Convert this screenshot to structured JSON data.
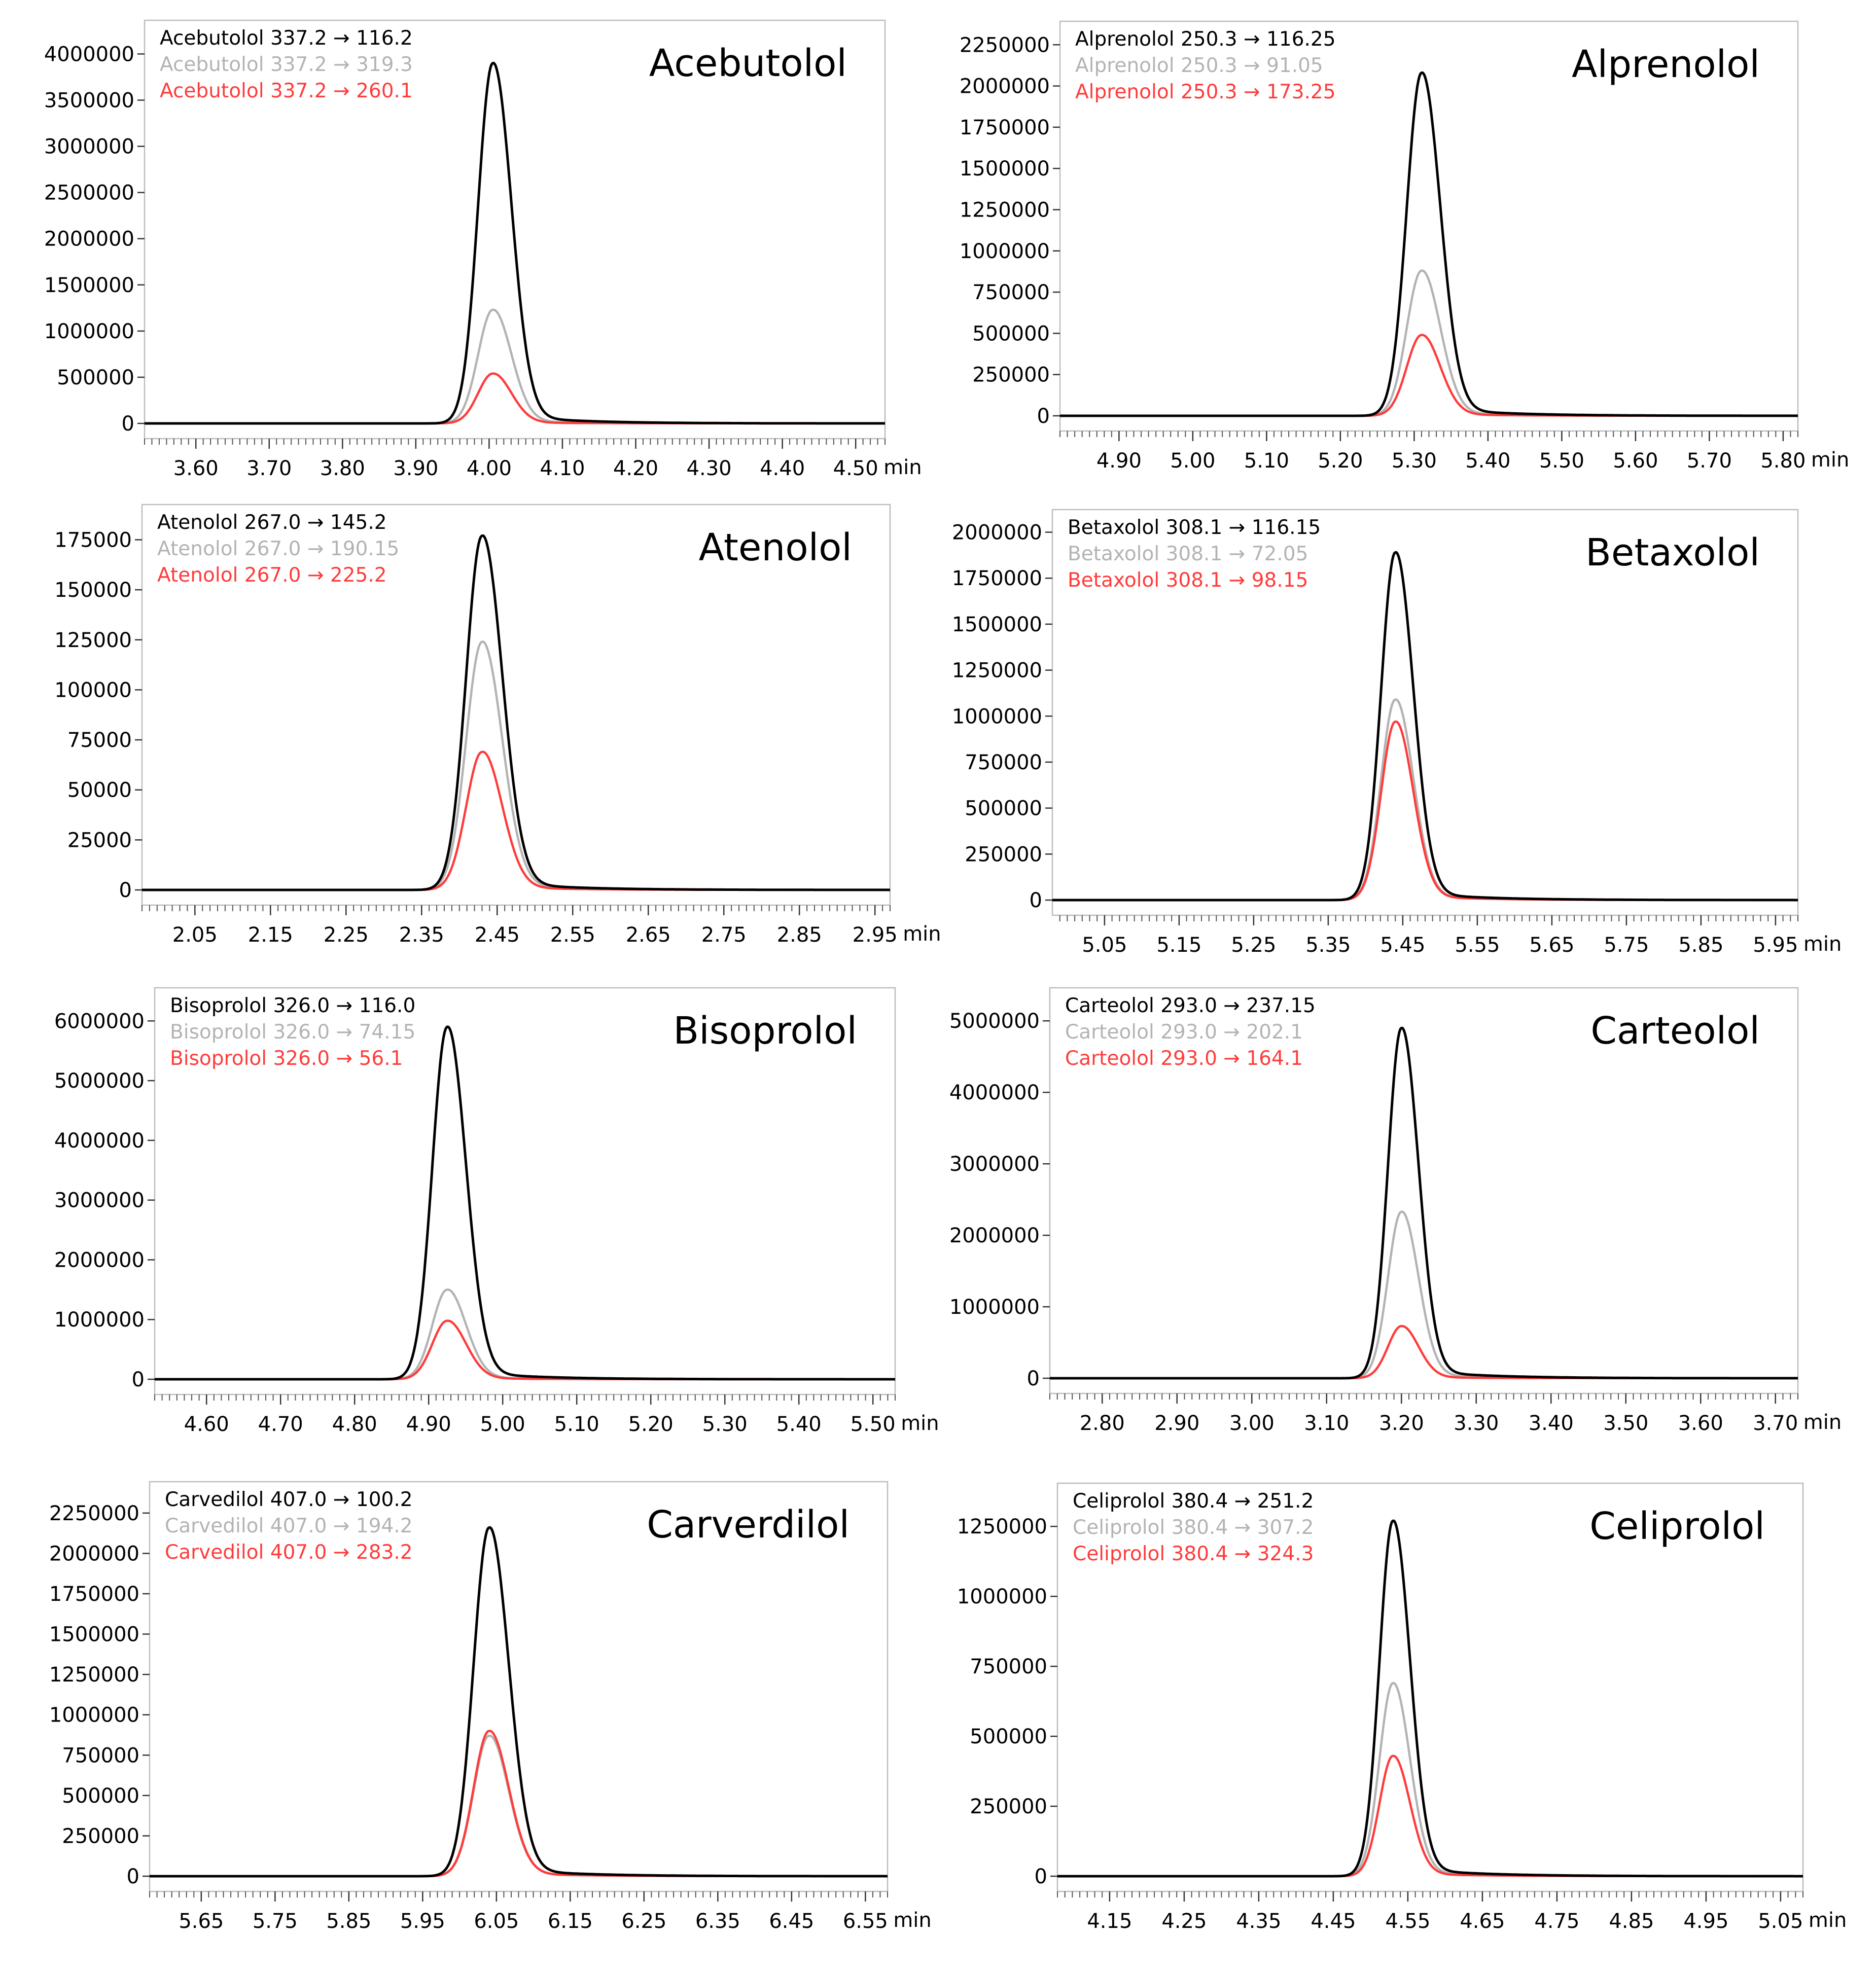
{
  "figure": "8-panel LC-MS/MS chromatogram grid",
  "colors": {
    "primary": "#000000",
    "secondary": "#b3b3b3",
    "tertiary": "#ff3b3b",
    "frame": "#bdbdbd"
  },
  "chart_data": [
    {
      "type": "line",
      "title": "Acebutolol",
      "xlabel": "min",
      "x_ticks": [
        "3.60",
        "3.70",
        "3.80",
        "3.90",
        "4.00",
        "4.10",
        "4.20",
        "4.30",
        "4.40",
        "4.50"
      ],
      "y_ticks": [
        "0",
        "500000",
        "1000000",
        "1500000",
        "2000000",
        "2500000",
        "3000000",
        "3500000",
        "4000000"
      ],
      "xlim": [
        3.53,
        4.54
      ],
      "ylim": [
        0,
        4200000
      ],
      "peak_rt": 4.005,
      "peak_sigma": 0.02,
      "series": [
        {
          "name": "Acebutolol 337.2 → 116.2",
          "color": "#000000",
          "peak": 3900000
        },
        {
          "name": "Acebutolol 337.2 → 319.3",
          "color": "#b3b3b3",
          "peak": 1230000
        },
        {
          "name": "Acebutolol 337.2 → 260.1",
          "color": "#ff3b3b",
          "peak": 540000
        }
      ]
    },
    {
      "type": "line",
      "title": "Alprenolol",
      "xlabel": "min",
      "x_ticks": [
        "4.90",
        "5.00",
        "5.10",
        "5.20",
        "5.30",
        "5.40",
        "5.50",
        "5.60",
        "5.70",
        "5.80"
      ],
      "y_ticks": [
        "0",
        "250000",
        "500000",
        "750000",
        "1000000",
        "1250000",
        "1500000",
        "1750000",
        "2000000",
        "2250000"
      ],
      "xlim": [
        4.82,
        5.82
      ],
      "ylim": [
        0,
        2300000
      ],
      "peak_rt": 5.31,
      "peak_sigma": 0.02,
      "series": [
        {
          "name": "Alprenolol 250.3 → 116.25",
          "color": "#000000",
          "peak": 2080000
        },
        {
          "name": "Alprenolol 250.3 → 91.05",
          "color": "#b3b3b3",
          "peak": 880000
        },
        {
          "name": "Alprenolol 250.3 → 173.25",
          "color": "#ff3b3b",
          "peak": 490000
        }
      ]
    },
    {
      "type": "line",
      "title": "Atenolol",
      "xlabel": "min",
      "x_ticks": [
        "2.05",
        "2.15",
        "2.25",
        "2.35",
        "2.45",
        "2.55",
        "2.65",
        "2.75",
        "2.85",
        "2.95"
      ],
      "y_ticks": [
        "0",
        "25000",
        "50000",
        "75000",
        "100000",
        "125000",
        "150000",
        "175000"
      ],
      "xlim": [
        1.98,
        2.97
      ],
      "ylim": [
        0,
        185000
      ],
      "peak_rt": 2.43,
      "peak_sigma": 0.021,
      "series": [
        {
          "name": "Atenolol 267.0 → 145.2",
          "color": "#000000",
          "peak": 177000
        },
        {
          "name": "Atenolol 267.0 → 190.15",
          "color": "#b3b3b3",
          "peak": 124000
        },
        {
          "name": "Atenolol 267.0 → 225.2",
          "color": "#ff3b3b",
          "peak": 69000
        }
      ]
    },
    {
      "type": "line",
      "title": "Betaxolol",
      "xlabel": "min",
      "x_ticks": [
        "5.05",
        "5.15",
        "5.25",
        "5.35",
        "5.45",
        "5.55",
        "5.65",
        "5.75",
        "5.85",
        "5.95"
      ],
      "y_ticks": [
        "0",
        "250000",
        "500000",
        "750000",
        "1000000",
        "1250000",
        "1500000",
        "1750000",
        "2000000"
      ],
      "xlim": [
        4.98,
        5.98
      ],
      "ylim": [
        0,
        2040000
      ],
      "peak_rt": 5.44,
      "peak_sigma": 0.019,
      "series": [
        {
          "name": "Betaxolol 308.1 → 116.15",
          "color": "#000000",
          "peak": 1890000
        },
        {
          "name": "Betaxolol 308.1 → 72.05",
          "color": "#b3b3b3",
          "peak": 1090000
        },
        {
          "name": "Betaxolol 308.1 → 98.15",
          "color": "#ff3b3b",
          "peak": 970000
        }
      ]
    },
    {
      "type": "line",
      "title": "Bisoprolol",
      "xlabel": "min",
      "x_ticks": [
        "4.60",
        "4.70",
        "4.80",
        "4.90",
        "5.00",
        "5.10",
        "5.20",
        "5.30",
        "5.40",
        "5.50"
      ],
      "y_ticks": [
        "0",
        "1000000",
        "2000000",
        "3000000",
        "4000000",
        "5000000",
        "6000000"
      ],
      "xlim": [
        4.53,
        5.53
      ],
      "ylim": [
        0,
        6300000
      ],
      "peak_rt": 4.925,
      "peak_sigma": 0.02,
      "series": [
        {
          "name": "Bisoprolol 326.0 → 116.0",
          "color": "#000000",
          "peak": 5900000
        },
        {
          "name": "Bisoprolol 326.0 → 74.15",
          "color": "#b3b3b3",
          "peak": 1500000
        },
        {
          "name": "Bisoprolol 326.0 → 56.1",
          "color": "#ff3b3b",
          "peak": 980000
        }
      ]
    },
    {
      "type": "line",
      "title": "Carteolol",
      "xlabel": "min",
      "x_ticks": [
        "2.80",
        "2.90",
        "3.00",
        "3.10",
        "3.20",
        "3.30",
        "3.40",
        "3.50",
        "3.60",
        "3.70"
      ],
      "y_ticks": [
        "0",
        "1000000",
        "2000000",
        "3000000",
        "4000000",
        "5000000"
      ],
      "xlim": [
        2.73,
        3.73
      ],
      "ylim": [
        0,
        5250000
      ],
      "peak_rt": 3.2,
      "peak_sigma": 0.018,
      "series": [
        {
          "name": "Carteolol 293.0 → 237.15",
          "color": "#000000",
          "peak": 4900000
        },
        {
          "name": "Carteolol 293.0 → 202.1",
          "color": "#b3b3b3",
          "peak": 2330000
        },
        {
          "name": "Carteolol 293.0 → 164.1",
          "color": "#ff3b3b",
          "peak": 730000
        }
      ]
    },
    {
      "type": "line",
      "title": "Carverdilol",
      "xlabel": "min",
      "x_ticks": [
        "5.65",
        "5.75",
        "5.85",
        "5.95",
        "6.05",
        "6.15",
        "6.25",
        "6.35",
        "6.45",
        "6.55"
      ],
      "y_ticks": [
        "0",
        "250000",
        "500000",
        "750000",
        "1000000",
        "1250000",
        "1500000",
        "1750000",
        "2000000",
        "2250000"
      ],
      "xlim": [
        5.58,
        6.58
      ],
      "ylim": [
        0,
        2350000
      ],
      "peak_rt": 6.04,
      "peak_sigma": 0.021,
      "series": [
        {
          "name": "Carvedilol 407.0 → 100.2",
          "color": "#000000",
          "peak": 2160000
        },
        {
          "name": "Carvedilol 407.0 → 194.2",
          "color": "#b3b3b3",
          "peak": 870000
        },
        {
          "name": "Carvedilol 407.0 → 283.2",
          "color": "#ff3b3b",
          "peak": 900000
        }
      ]
    },
    {
      "type": "line",
      "title": "Celiprolol",
      "xlabel": "min",
      "x_ticks": [
        "4.15",
        "4.25",
        "4.35",
        "4.45",
        "4.55",
        "4.65",
        "4.75",
        "4.85",
        "4.95",
        "5.05"
      ],
      "y_ticks": [
        "0",
        "250000",
        "500000",
        "750000",
        "1000000",
        "1250000"
      ],
      "xlim": [
        4.08,
        5.08
      ],
      "ylim": [
        0,
        1350000
      ],
      "peak_rt": 4.53,
      "peak_sigma": 0.018,
      "series": [
        {
          "name": "Celiprolol 380.4 → 251.2",
          "color": "#000000",
          "peak": 1270000
        },
        {
          "name": "Celiprolol 380.4 → 307.2",
          "color": "#b3b3b3",
          "peak": 690000
        },
        {
          "name": "Celiprolol 380.4 → 324.3",
          "color": "#ff3b3b",
          "peak": 430000
        }
      ]
    }
  ]
}
